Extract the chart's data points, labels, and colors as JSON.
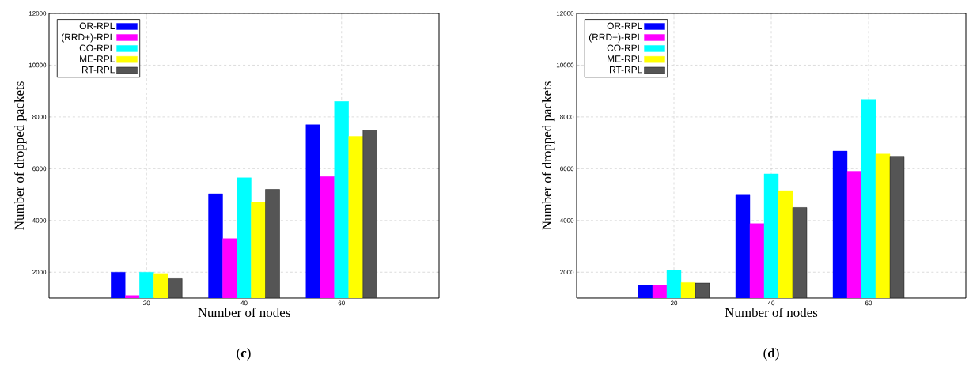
{
  "chart_data": [
    {
      "type": "bar",
      "xlabel": "Number of nodes",
      "ylabel": "Number of dropped packets",
      "categories": [
        "20",
        "40",
        "60"
      ],
      "series": [
        {
          "name": "OR-RPL",
          "color": "#0000ff",
          "values": [
            2000,
            5030,
            7700
          ]
        },
        {
          "name": "(RRD+)-RPL",
          "color": "#ff00ff",
          "values": [
            1100,
            3300,
            5700
          ]
        },
        {
          "name": "CO-RPL",
          "color": "#00ffff",
          "values": [
            2000,
            5650,
            8600
          ]
        },
        {
          "name": "ME-RPL",
          "color": "#ffff00",
          "values": [
            1950,
            4700,
            7250
          ]
        },
        {
          "name": "RT-RPL",
          "color": "#555555",
          "values": [
            1750,
            5200,
            7500
          ]
        }
      ],
      "ylim": [
        1000,
        12000
      ],
      "yticks": [
        2000,
        4000,
        6000,
        8000,
        10000,
        12000
      ],
      "grid": true,
      "legend": "top left",
      "annotations": [
        "(**c**)"
      ]
    },
    {
      "type": "bar",
      "xlabel": "Number of nodes",
      "ylabel": "Number of dropped packets",
      "categories": [
        "20",
        "40",
        "60"
      ],
      "series": [
        {
          "name": "OR-RPL",
          "color": "#0000ff",
          "values": [
            1500,
            4980,
            6680
          ]
        },
        {
          "name": "(RRD+)-RPL",
          "color": "#ff00ff",
          "values": [
            1500,
            3880,
            5900
          ]
        },
        {
          "name": "CO-RPL",
          "color": "#00ffff",
          "values": [
            2070,
            5800,
            8680
          ]
        },
        {
          "name": "ME-RPL",
          "color": "#ffff00",
          "values": [
            1600,
            5150,
            6570
          ]
        },
        {
          "name": "RT-RPL",
          "color": "#555555",
          "values": [
            1580,
            4500,
            6480
          ]
        }
      ],
      "ylim": [
        1000,
        12000
      ],
      "yticks": [
        2000,
        4000,
        6000,
        8000,
        10000,
        12000
      ],
      "grid": true,
      "legend": "top left",
      "annotations": [
        "(**d**)"
      ]
    }
  ]
}
